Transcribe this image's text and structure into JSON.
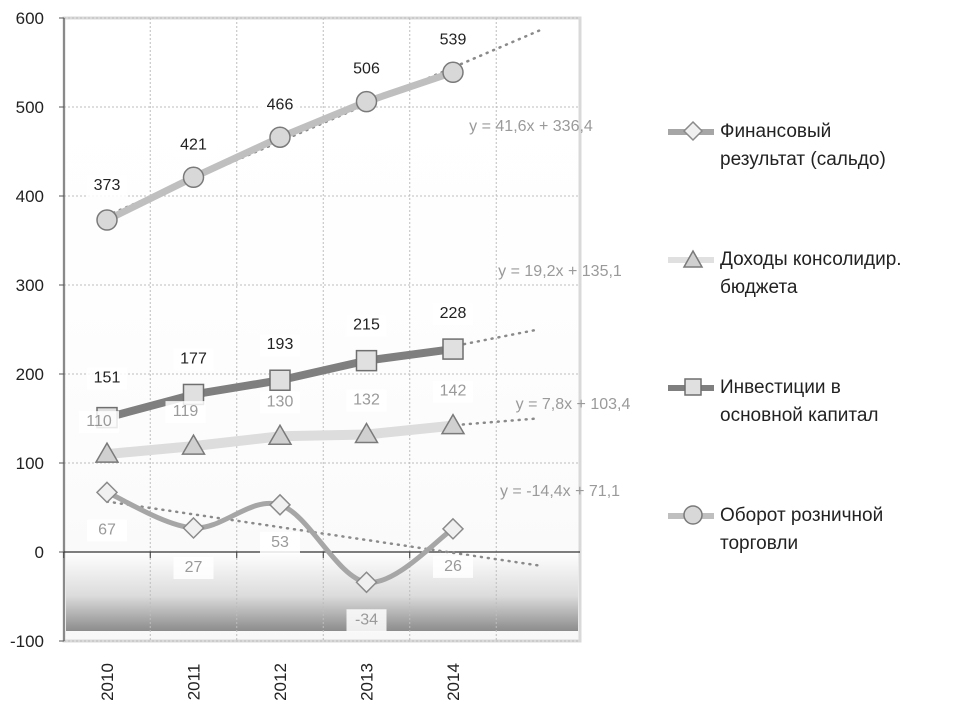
{
  "chart_data": {
    "type": "line",
    "categories": [
      "2010",
      "2011",
      "2012",
      "2013",
      "2014"
    ],
    "ylim": [
      -100,
      600
    ],
    "yticks": [
      -100,
      0,
      100,
      200,
      300,
      400,
      500,
      600
    ],
    "grid": true,
    "legend_position": "right",
    "series": [
      {
        "name": "Финансовый результат (сальдо)",
        "values": [
          67,
          27,
          53,
          -34,
          26
        ],
        "labels": [
          "67",
          "27",
          "53",
          "-34",
          "26"
        ],
        "marker": "diamond",
        "color": "#a6a6a6",
        "trend": {
          "label": "y = -14,4x + 71,1",
          "slope": -14.4,
          "intercept": 71.1
        }
      },
      {
        "name": "Доходы консолидир. бюджета",
        "values": [
          110,
          119,
          130,
          132,
          142
        ],
        "labels": [
          "110",
          "119",
          "130",
          "132",
          "142"
        ],
        "marker": "triangle",
        "color": "#d3d3d3",
        "trend": {
          "label": "y = 7,8x + 103,4",
          "slope": 7.8,
          "intercept": 103.4
        }
      },
      {
        "name": "Инвестиции в основной капитал",
        "values": [
          151,
          177,
          193,
          215,
          228
        ],
        "labels": [
          "151",
          "177",
          "193",
          "215",
          "228"
        ],
        "marker": "square",
        "color": "#7f7f7f",
        "trend": {
          "label": "y = 19,2x + 135,1",
          "slope": 19.2,
          "intercept": 135.1
        }
      },
      {
        "name": "Оборот розничной торговли",
        "values": [
          373,
          421,
          466,
          506,
          539
        ],
        "labels": [
          "373",
          "421",
          "466",
          "506",
          "539"
        ],
        "marker": "circle",
        "color": "#bfbfbf",
        "trend": {
          "label": "y = 41,6x + 336,4",
          "slope": 41.6,
          "intercept": 336.4
        }
      }
    ]
  },
  "legend": {
    "items": [
      {
        "label": "Финансовый\nрезультат (сальдо)",
        "marker": "diamond-icon"
      },
      {
        "label": "Доходы консолидир.\nбюджета",
        "marker": "triangle-icon"
      },
      {
        "label": "Инвестиции в\nосновной капитал",
        "marker": "square-icon"
      },
      {
        "label": "Оборот розничной\nторговли",
        "marker": "circle-icon"
      }
    ]
  }
}
